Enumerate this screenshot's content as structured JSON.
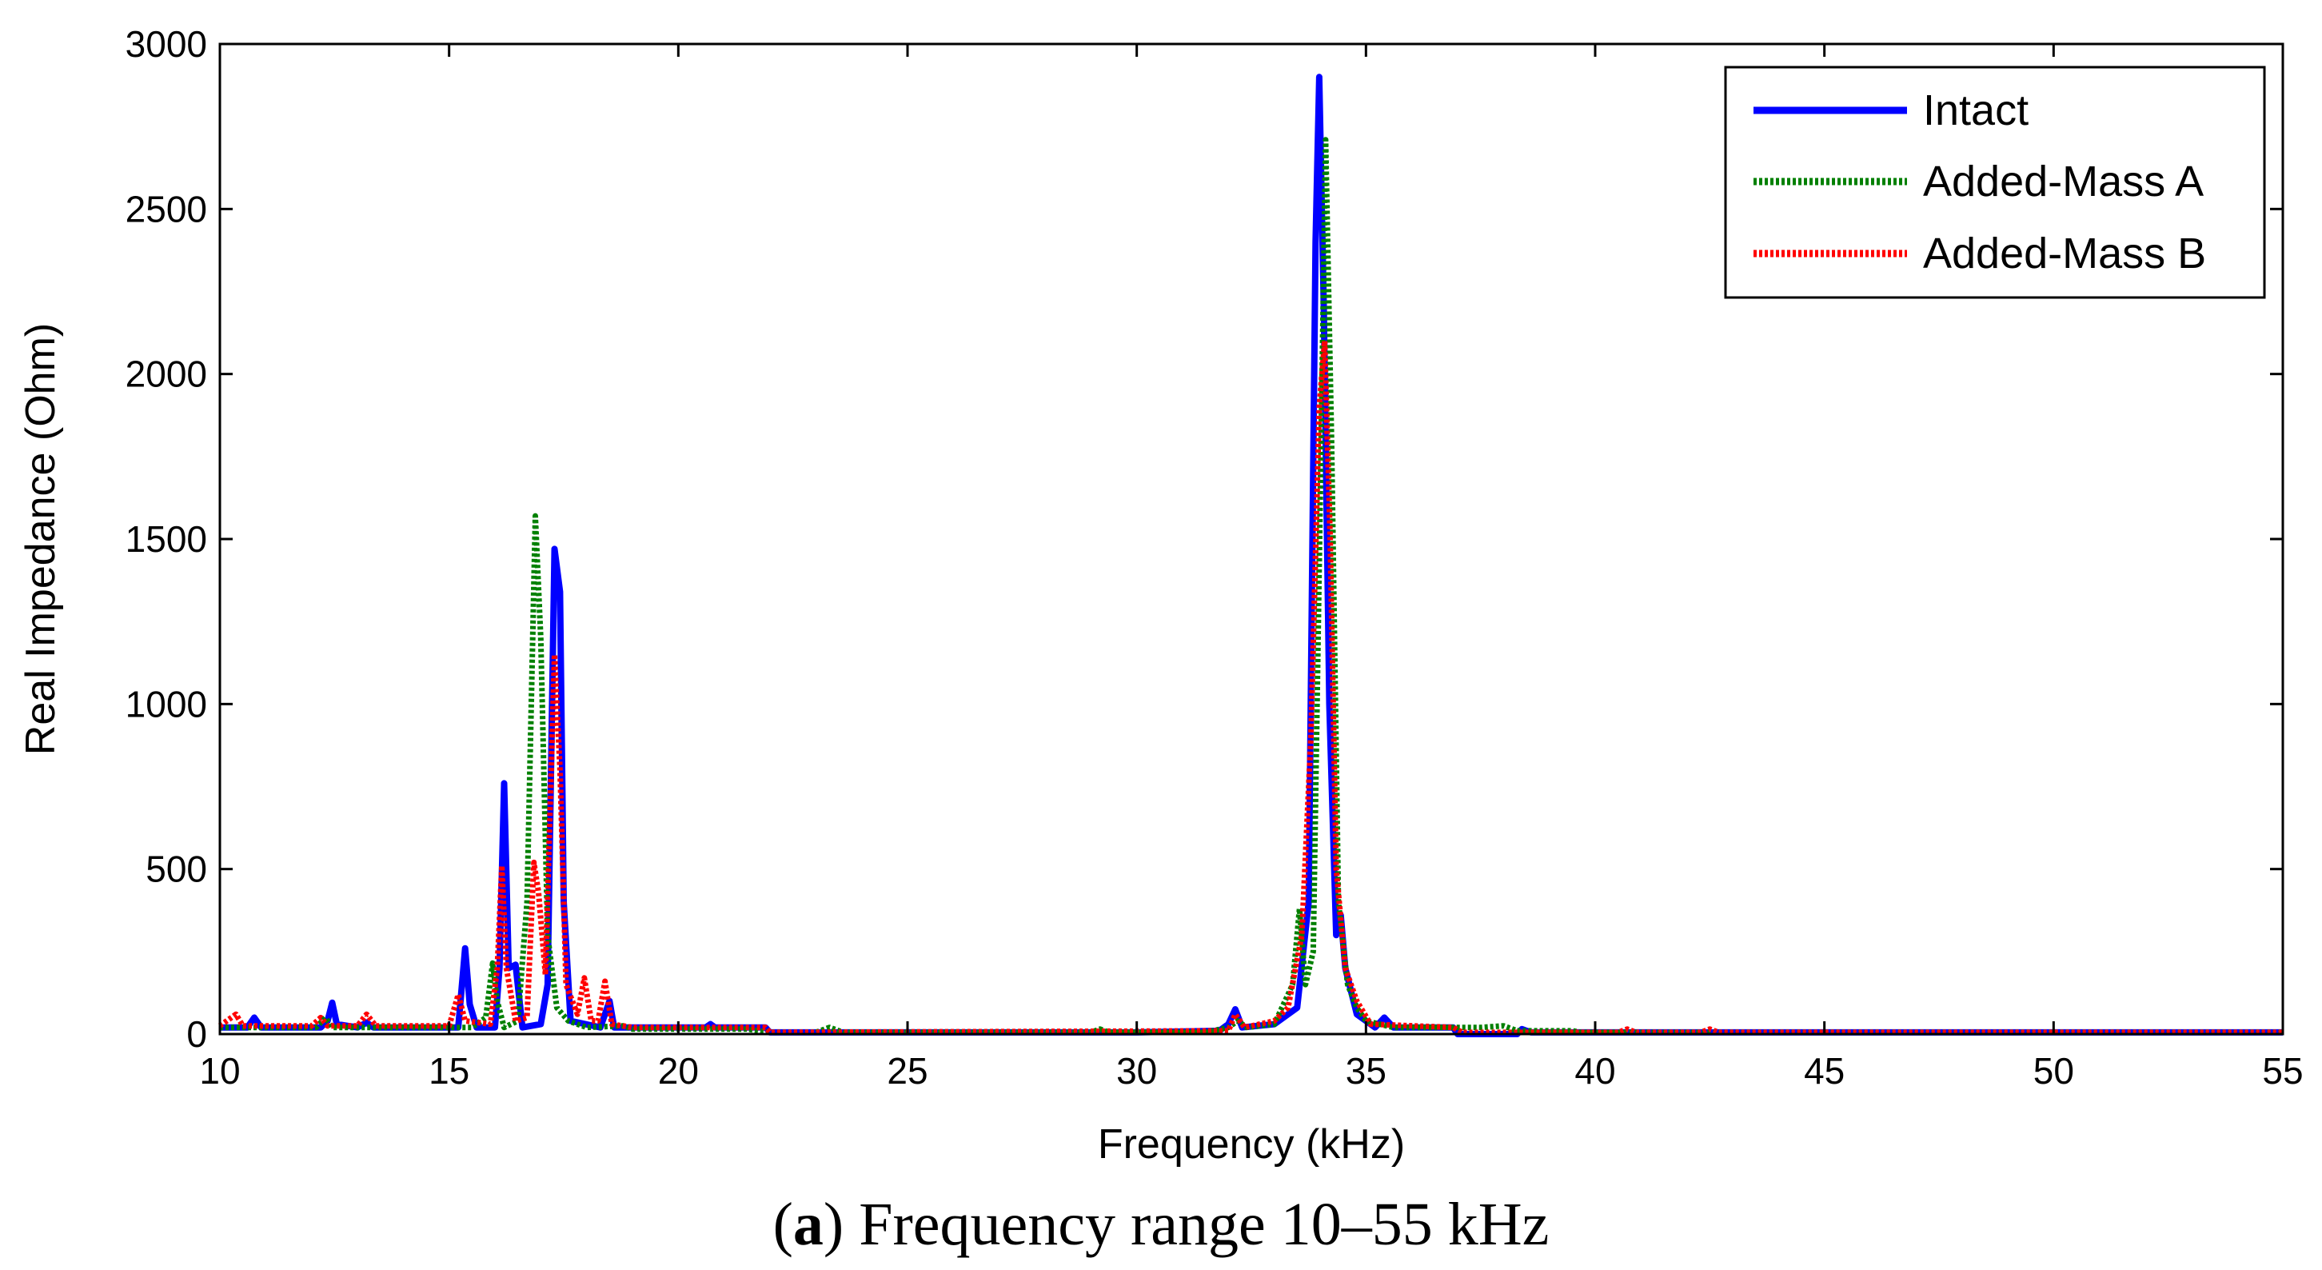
{
  "chart_data": {
    "type": "line",
    "title": "",
    "xlabel": "Frequency (kHz)",
    "ylabel": "Real Impedance (Ohm)",
    "xlim": [
      10,
      55
    ],
    "ylim": [
      0,
      3000
    ],
    "xticks": [
      "10",
      "15",
      "20",
      "25",
      "30",
      "35",
      "40",
      "45",
      "50",
      "55"
    ],
    "yticks": [
      "0",
      "500",
      "1000",
      "1500",
      "2000",
      "2500",
      "3000"
    ],
    "legend_position": "top-right",
    "series": [
      {
        "name": "Intact",
        "color": "#0000ff",
        "style": "solid",
        "points": [
          [
            10,
            20
          ],
          [
            10.6,
            20
          ],
          [
            10.75,
            50
          ],
          [
            10.9,
            20
          ],
          [
            12.2,
            20
          ],
          [
            12.35,
            40
          ],
          [
            12.45,
            95
          ],
          [
            12.55,
            30
          ],
          [
            13.0,
            20
          ],
          [
            13.2,
            35
          ],
          [
            13.35,
            20
          ],
          [
            15.0,
            20
          ],
          [
            15.2,
            20
          ],
          [
            15.35,
            260
          ],
          [
            15.45,
            90
          ],
          [
            15.6,
            20
          ],
          [
            16.0,
            20
          ],
          [
            16.1,
            200
          ],
          [
            16.2,
            760
          ],
          [
            16.3,
            200
          ],
          [
            16.45,
            210
          ],
          [
            16.6,
            20
          ],
          [
            17.0,
            30
          ],
          [
            17.15,
            150
          ],
          [
            17.3,
            1470
          ],
          [
            17.42,
            1340
          ],
          [
            17.5,
            400
          ],
          [
            17.65,
            40
          ],
          [
            18.3,
            20
          ],
          [
            18.5,
            100
          ],
          [
            18.6,
            20
          ],
          [
            20.0,
            20
          ],
          [
            20.6,
            20
          ],
          [
            20.7,
            30
          ],
          [
            20.8,
            20
          ],
          [
            21.9,
            20
          ],
          [
            22.0,
            5
          ],
          [
            30.0,
            5
          ],
          [
            31.8,
            10
          ],
          [
            32.0,
            30
          ],
          [
            32.15,
            75
          ],
          [
            32.3,
            20
          ],
          [
            33.0,
            30
          ],
          [
            33.5,
            80
          ],
          [
            33.75,
            400
          ],
          [
            33.9,
            2400
          ],
          [
            33.98,
            2900
          ],
          [
            34.08,
            2200
          ],
          [
            34.2,
            1000
          ],
          [
            34.35,
            300
          ],
          [
            34.45,
            360
          ],
          [
            34.55,
            200
          ],
          [
            34.8,
            60
          ],
          [
            35.2,
            20
          ],
          [
            35.4,
            50
          ],
          [
            35.6,
            20
          ],
          [
            36.9,
            20
          ],
          [
            37.0,
            0
          ],
          [
            38.3,
            0
          ],
          [
            38.4,
            15
          ],
          [
            38.6,
            5
          ],
          [
            55,
            5
          ]
        ]
      },
      {
        "name": "Added-Mass A",
        "color": "#008000",
        "style": "dotted",
        "points": [
          [
            10,
            20
          ],
          [
            12.1,
            20
          ],
          [
            12.3,
            50
          ],
          [
            12.45,
            20
          ],
          [
            15.5,
            20
          ],
          [
            15.8,
            50
          ],
          [
            15.95,
            215
          ],
          [
            16.05,
            100
          ],
          [
            16.2,
            20
          ],
          [
            16.5,
            40
          ],
          [
            16.7,
            400
          ],
          [
            16.88,
            1570
          ],
          [
            17.0,
            1200
          ],
          [
            17.15,
            300
          ],
          [
            17.35,
            80
          ],
          [
            17.6,
            40
          ],
          [
            18.0,
            20
          ],
          [
            18.8,
            25
          ],
          [
            19.0,
            15
          ],
          [
            21.5,
            15
          ],
          [
            22.0,
            5
          ],
          [
            23.0,
            5
          ],
          [
            23.3,
            20
          ],
          [
            23.6,
            5
          ],
          [
            29.0,
            5
          ],
          [
            29.2,
            15
          ],
          [
            29.4,
            5
          ],
          [
            31.5,
            5
          ],
          [
            32.0,
            20
          ],
          [
            32.2,
            40
          ],
          [
            32.4,
            20
          ],
          [
            33.0,
            30
          ],
          [
            33.4,
            150
          ],
          [
            33.55,
            380
          ],
          [
            33.68,
            150
          ],
          [
            33.85,
            250
          ],
          [
            34.0,
            1600
          ],
          [
            34.12,
            2710
          ],
          [
            34.25,
            1800
          ],
          [
            34.4,
            400
          ],
          [
            34.6,
            150
          ],
          [
            34.8,
            80
          ],
          [
            35.0,
            40
          ],
          [
            35.6,
            20
          ],
          [
            37.5,
            20
          ],
          [
            38.0,
            25
          ],
          [
            38.3,
            10
          ],
          [
            39.5,
            10
          ],
          [
            39.7,
            5
          ],
          [
            55,
            5
          ]
        ]
      },
      {
        "name": "Added-Mass B",
        "color": "#ff0000",
        "style": "dotted",
        "points": [
          [
            10,
            25
          ],
          [
            10.35,
            60
          ],
          [
            10.5,
            25
          ],
          [
            12.0,
            25
          ],
          [
            12.2,
            50
          ],
          [
            12.35,
            25
          ],
          [
            13.0,
            25
          ],
          [
            13.2,
            60
          ],
          [
            13.4,
            25
          ],
          [
            15.0,
            25
          ],
          [
            15.2,
            120
          ],
          [
            15.35,
            40
          ],
          [
            15.9,
            30
          ],
          [
            16.05,
            200
          ],
          [
            16.15,
            510
          ],
          [
            16.25,
            200
          ],
          [
            16.45,
            40
          ],
          [
            16.7,
            50
          ],
          [
            16.85,
            520
          ],
          [
            16.95,
            430
          ],
          [
            17.1,
            180
          ],
          [
            17.3,
            1150
          ],
          [
            17.42,
            800
          ],
          [
            17.55,
            150
          ],
          [
            17.8,
            60
          ],
          [
            17.95,
            170
          ],
          [
            18.1,
            40
          ],
          [
            18.25,
            40
          ],
          [
            18.4,
            160
          ],
          [
            18.55,
            30
          ],
          [
            19.0,
            20
          ],
          [
            21.9,
            20
          ],
          [
            22.0,
            5
          ],
          [
            32.0,
            10
          ],
          [
            32.15,
            60
          ],
          [
            32.35,
            20
          ],
          [
            33.0,
            40
          ],
          [
            33.3,
            80
          ],
          [
            33.6,
            300
          ],
          [
            33.8,
            900
          ],
          [
            33.98,
            1900
          ],
          [
            34.1,
            2100
          ],
          [
            34.22,
            1500
          ],
          [
            34.35,
            500
          ],
          [
            34.55,
            200
          ],
          [
            34.8,
            100
          ],
          [
            35.1,
            30
          ],
          [
            36.9,
            20
          ],
          [
            37.1,
            5
          ],
          [
            40.5,
            5
          ],
          [
            40.7,
            15
          ],
          [
            40.9,
            5
          ],
          [
            42.3,
            5
          ],
          [
            42.5,
            15
          ],
          [
            42.7,
            5
          ],
          [
            55,
            5
          ]
        ]
      }
    ]
  },
  "caption": {
    "label": "a",
    "text": ") Frequency range 10–55 kHz"
  }
}
